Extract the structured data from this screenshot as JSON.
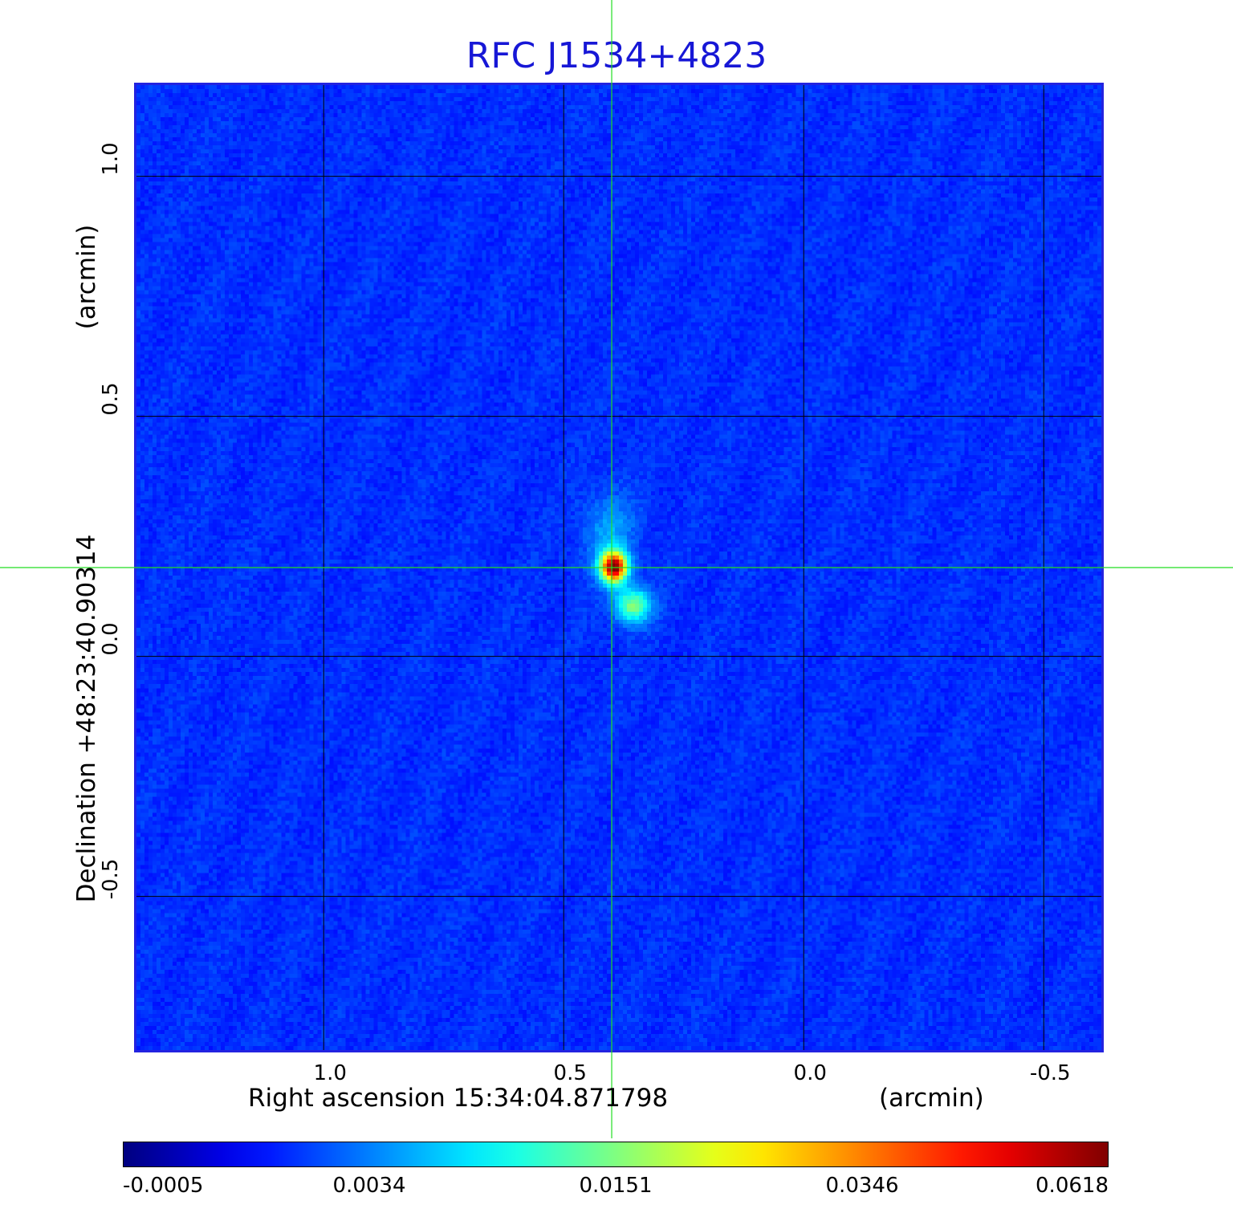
{
  "title": "RFC J1534+4823",
  "xaxis": {
    "label": "Right ascension  15:34:04.871798",
    "unit": "(arcmin)",
    "ticks": [
      "1.0",
      "0.5",
      "0.0",
      "-0.5"
    ],
    "tick_values": [
      1.0,
      0.5,
      0.0,
      -0.5
    ],
    "range": [
      1.39,
      -0.62
    ]
  },
  "yaxis": {
    "label": "Declination  +48:23:40.90314",
    "unit": "(arcmin)",
    "ticks": [
      "1.0",
      "0.5",
      "0.0",
      "-0.5"
    ],
    "tick_values": [
      1.0,
      0.5,
      0.0,
      -0.5
    ],
    "range": [
      -0.82,
      1.19
    ]
  },
  "crosshair": {
    "x_arcmin": 0.4,
    "y_arcmin": 0.185
  },
  "colorbar": {
    "ticks": [
      "-0.0005",
      "0.0034",
      "0.0151",
      "0.0346",
      "0.0618"
    ],
    "tick_values": [
      -0.0005,
      0.0034,
      0.0151,
      0.0346,
      0.0618
    ]
  },
  "source": {
    "peak": {
      "x_arcmin": 0.4,
      "y_arcmin": 0.19,
      "value": 0.0618
    },
    "secondary": {
      "x_arcmin": 0.36,
      "y_arcmin": 0.11,
      "value": 0.0151
    }
  },
  "colors": {
    "title": "#1717d6",
    "frame": "#2323e0",
    "crosshair": "#22dd22",
    "grid": "#000000"
  }
}
